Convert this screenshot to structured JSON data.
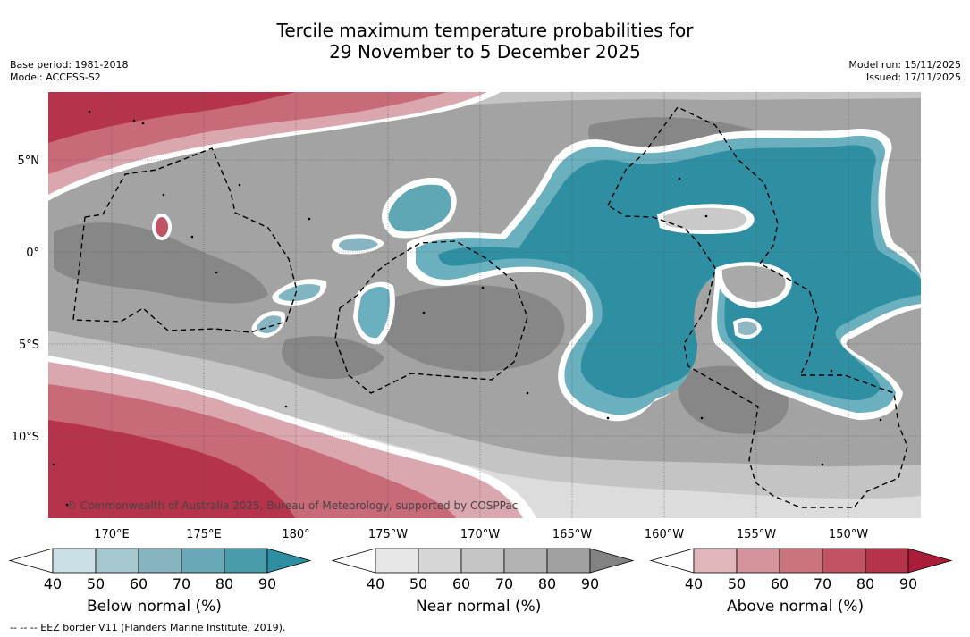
{
  "title": {
    "line1": "Tercile maximum temperature probabilities for",
    "line2": "29 November to 5 December 2025"
  },
  "meta": {
    "base_period": "Base period: 1981-2018",
    "model": "Model: ACCESS-S2",
    "model_run": "Model run: 15/11/2025",
    "issued": "Issued: 17/11/2025"
  },
  "map": {
    "lat_labels": [
      "5°N",
      "0°",
      "5°S",
      "10°S"
    ],
    "lon_labels_top": [
      "170°E",
      "175°E",
      "180°"
    ],
    "lon_labels_middle": [
      "175°W",
      "170°W",
      "165°W"
    ],
    "lon_labels_right": [
      "160°W",
      "155°W",
      "150°W"
    ],
    "copyright": "© Commonwealth of Australia 2025, Bureau of Meteorology, supported by COSPPac"
  },
  "legends": [
    {
      "name": "below",
      "label": "Below normal (%)",
      "ticks": [
        "40",
        "50",
        "60",
        "70",
        "80",
        "90"
      ],
      "colors": [
        "#ffffff",
        "#c9e0e6",
        "#a5c8cf",
        "#86b4c0",
        "#69a9b7",
        "#4a9cab",
        "#2e8fa3"
      ]
    },
    {
      "name": "near",
      "label": "Near normal (%)",
      "ticks": [
        "40",
        "50",
        "60",
        "70",
        "80",
        "90"
      ],
      "colors": [
        "#ffffff",
        "#e6e6e6",
        "#d6d6d6",
        "#c5c5c5",
        "#b3b3b3",
        "#a1a1a1",
        "#828282"
      ]
    },
    {
      "name": "above",
      "label": "Above normal (%)",
      "ticks": [
        "40",
        "50",
        "60",
        "70",
        "80",
        "90"
      ],
      "colors": [
        "#ffffff",
        "#e0b6bb",
        "#d5949b",
        "#ca747f",
        "#c05465",
        "#b5334b",
        "#ab1c3a"
      ]
    }
  ],
  "footnote": "-- -- -- EEZ border V11 (Flanders Marine Institute, 2019)."
}
